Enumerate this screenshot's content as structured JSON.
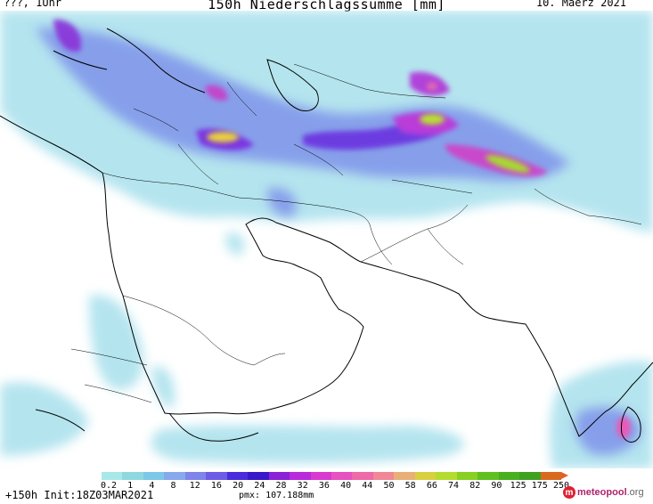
{
  "header": {
    "left": "???, 1Uhr",
    "title": "150h Niederschlagssumme [mm]",
    "date": "10. Maerz 2021"
  },
  "legend": {
    "labels": [
      "0.2",
      "1",
      "4",
      "8",
      "12",
      "16",
      "20",
      "24",
      "28",
      "32",
      "36",
      "40",
      "44",
      "50",
      "58",
      "66",
      "74",
      "82",
      "90",
      "125",
      "175",
      "250"
    ],
    "colors": [
      "#a8e8e8",
      "#90d8e0",
      "#7cc8e6",
      "#88a8ec",
      "#7e84ea",
      "#6c5ce6",
      "#4a2cdc",
      "#3818c8",
      "#8a22d8",
      "#b82adc",
      "#d83ad0",
      "#e652c0",
      "#ee6aa8",
      "#f08898",
      "#e8b078",
      "#d8d040",
      "#b4dc30",
      "#88d024",
      "#60c020",
      "#48b020",
      "#40a020",
      "#d86a20"
    ]
  },
  "footer": {
    "run": "+150h Init:18Z03MAR2021",
    "pmx": "pmx: 107.188mm",
    "brand_prefix": "meteo",
    "brand_main": "pool",
    "brand_suffix": ".org"
  }
}
